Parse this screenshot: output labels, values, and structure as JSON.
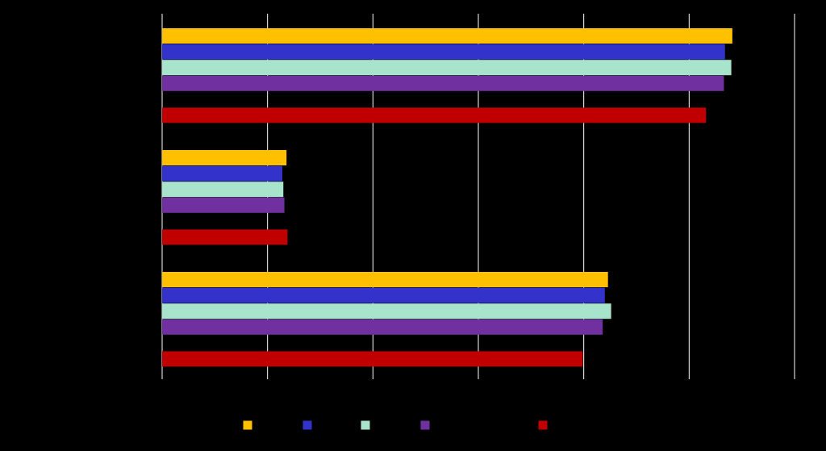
{
  "chart_data": {
    "type": "bar",
    "orientation": "horizontal",
    "title": "",
    "xlabel": "",
    "ylabel": "",
    "xlim": [
      0,
      6
    ],
    "grid": true,
    "legend_position": "bottom",
    "categories": [
      "",
      "",
      ""
    ],
    "series": [
      {
        "color": "#FFC000",
        "values": [
          5.41,
          1.18,
          4.23
        ]
      },
      {
        "color": "#3333CC",
        "values": [
          5.34,
          1.14,
          4.2
        ]
      },
      {
        "color": "#A8E4CC",
        "values": [
          5.4,
          1.15,
          4.26
        ]
      },
      {
        "color": "#7030A0",
        "values": [
          5.33,
          1.16,
          4.18
        ]
      },
      {
        "color": "#C00000",
        "values": [
          5.16,
          1.19,
          3.99
        ]
      }
    ]
  }
}
